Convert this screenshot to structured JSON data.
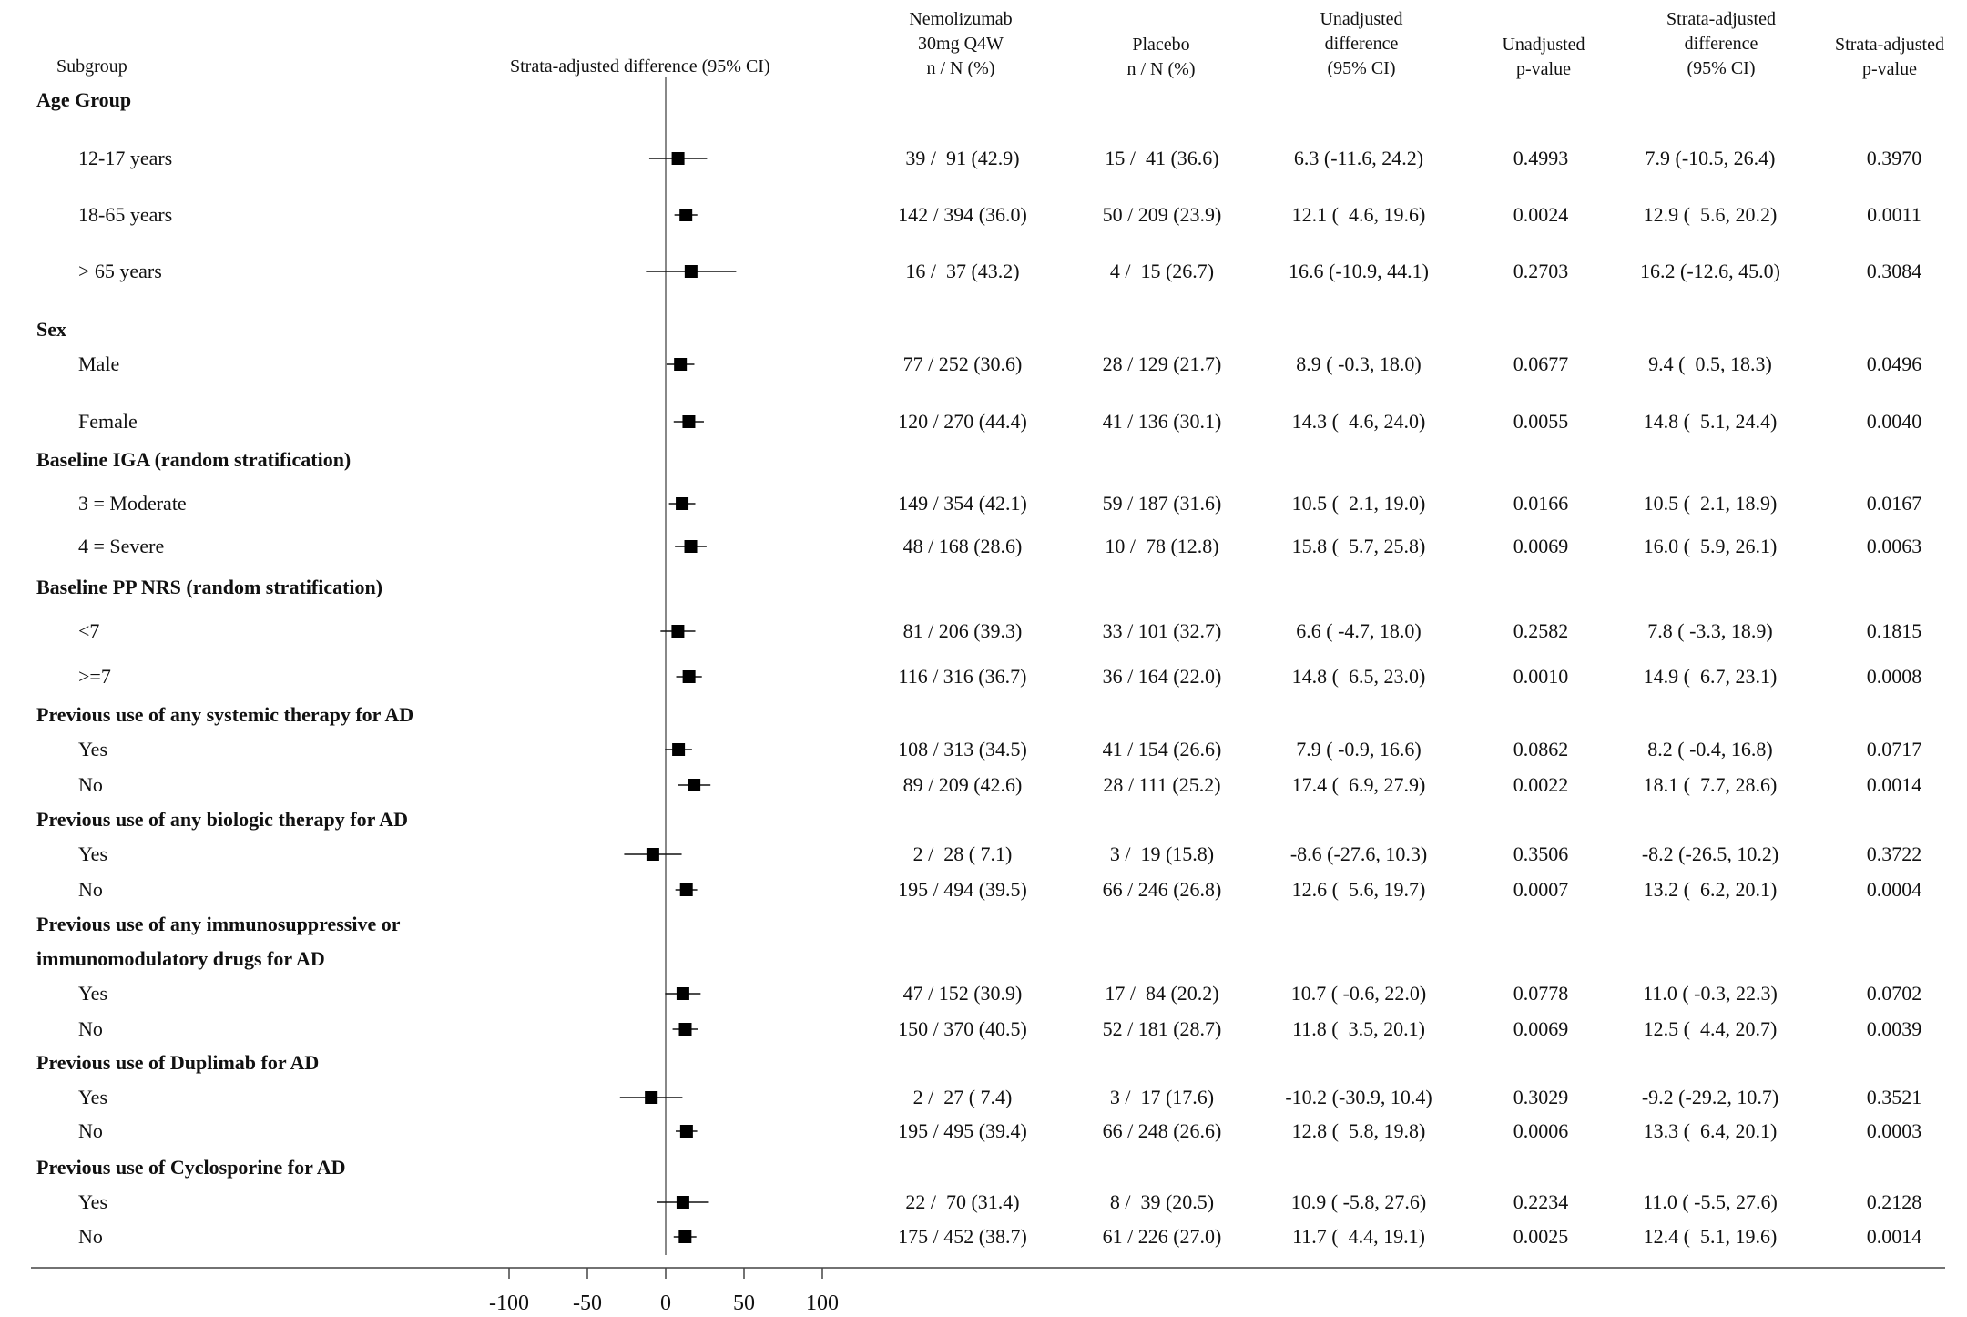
{
  "headers": {
    "subgroup": "Subgroup",
    "plot": "Strata-adjusted difference (95% CI)",
    "nemo": "Nemolizumab\n30mg Q4W\nn / N (%)",
    "placebo": "Placebo\nn / N (%)",
    "unadj_diff": "Unadjusted\ndifference\n(95% CI)",
    "unadj_p": "Unadjusted\np-value",
    "adj_diff": "Strata-adjusted\ndifference\n(95% CI)",
    "adj_p": "Strata-adjusted\np-value"
  },
  "chart_data": {
    "type": "forest",
    "xlim": [
      -100,
      100
    ],
    "ticks": [
      -100,
      -50,
      0,
      50,
      100
    ],
    "reference_line": 0,
    "rows": [
      {
        "label": "Age Group",
        "group": true
      },
      {
        "label": "12-17 years",
        "nemo": "39 /  91 (42.9)",
        "placebo": "15 /  41 (36.6)",
        "unadj_diff": "6.3 (-11.6, 24.2)",
        "unadj_p": "0.4993",
        "adj_diff": "7.9 (-10.5, 26.4)",
        "adj_p": "0.3970",
        "est": 7.9,
        "lo": -10.5,
        "hi": 26.4
      },
      {
        "label": "18-65 years",
        "nemo": "142 / 394 (36.0)",
        "placebo": "50 / 209 (23.9)",
        "unadj_diff": "12.1 (  4.6, 19.6)",
        "unadj_p": "0.0024",
        "adj_diff": "12.9 (  5.6, 20.2)",
        "adj_p": "0.0011",
        "est": 12.9,
        "lo": 5.6,
        "hi": 20.2
      },
      {
        "label": "> 65 years",
        "nemo": "16 /  37 (43.2)",
        "placebo": "4 /  15 (26.7)",
        "unadj_diff": "16.6 (-10.9, 44.1)",
        "unadj_p": "0.2703",
        "adj_diff": "16.2 (-12.6, 45.0)",
        "adj_p": "0.3084",
        "est": 16.2,
        "lo": -12.6,
        "hi": 45.0
      },
      {
        "label": "Sex",
        "group": true
      },
      {
        "label": "Male",
        "nemo": "77 / 252 (30.6)",
        "placebo": "28 / 129 (21.7)",
        "unadj_diff": "8.9 ( -0.3, 18.0)",
        "unadj_p": "0.0677",
        "adj_diff": "9.4 (  0.5, 18.3)",
        "adj_p": "0.0496",
        "est": 9.4,
        "lo": 0.5,
        "hi": 18.3
      },
      {
        "label": "Female",
        "nemo": "120 / 270 (44.4)",
        "placebo": "41 / 136 (30.1)",
        "unadj_diff": "14.3 (  4.6, 24.0)",
        "unadj_p": "0.0055",
        "adj_diff": "14.8 (  5.1, 24.4)",
        "adj_p": "0.0040",
        "est": 14.8,
        "lo": 5.1,
        "hi": 24.4
      },
      {
        "label": "Baseline IGA (random stratification)",
        "group": true
      },
      {
        "label": "3 = Moderate",
        "nemo": "149 / 354 (42.1)",
        "placebo": "59 / 187 (31.6)",
        "unadj_diff": "10.5 (  2.1, 19.0)",
        "unadj_p": "0.0166",
        "adj_diff": "10.5 (  2.1, 18.9)",
        "adj_p": "0.0167",
        "est": 10.5,
        "lo": 2.1,
        "hi": 18.9
      },
      {
        "label": "4 = Severe",
        "nemo": "48 / 168 (28.6)",
        "placebo": "10 /  78 (12.8)",
        "unadj_diff": "15.8 (  5.7, 25.8)",
        "unadj_p": "0.0069",
        "adj_diff": "16.0 (  5.9, 26.1)",
        "adj_p": "0.0063",
        "est": 16.0,
        "lo": 5.9,
        "hi": 26.1
      },
      {
        "label": "Baseline PP NRS (random stratification)",
        "group": true
      },
      {
        "label": "<7",
        "nemo": "81 / 206 (39.3)",
        "placebo": "33 / 101 (32.7)",
        "unadj_diff": "6.6 ( -4.7, 18.0)",
        "unadj_p": "0.2582",
        "adj_diff": "7.8 ( -3.3, 18.9)",
        "adj_p": "0.1815",
        "est": 7.8,
        "lo": -3.3,
        "hi": 18.9
      },
      {
        "label": ">=7",
        "nemo": "116 / 316 (36.7)",
        "placebo": "36 / 164 (22.0)",
        "unadj_diff": "14.8 (  6.5, 23.0)",
        "unadj_p": "0.0010",
        "adj_diff": "14.9 (  6.7, 23.1)",
        "adj_p": "0.0008",
        "est": 14.9,
        "lo": 6.7,
        "hi": 23.1
      },
      {
        "label": "Previous use of any systemic therapy for AD",
        "group": true
      },
      {
        "label": "Yes",
        "nemo": "108 / 313 (34.5)",
        "placebo": "41 / 154 (26.6)",
        "unadj_diff": "7.9 ( -0.9, 16.6)",
        "unadj_p": "0.0862",
        "adj_diff": "8.2 ( -0.4, 16.8)",
        "adj_p": "0.0717",
        "est": 8.2,
        "lo": -0.4,
        "hi": 16.8
      },
      {
        "label": "No",
        "nemo": "89 / 209 (42.6)",
        "placebo": "28 / 111 (25.2)",
        "unadj_diff": "17.4 (  6.9, 27.9)",
        "unadj_p": "0.0022",
        "adj_diff": "18.1 (  7.7, 28.6)",
        "adj_p": "0.0014",
        "est": 18.1,
        "lo": 7.7,
        "hi": 28.6
      },
      {
        "label": "Previous use of any biologic therapy for AD",
        "group": true
      },
      {
        "label": "Yes",
        "nemo": "2 /  28 ( 7.1)",
        "placebo": "3 /  19 (15.8)",
        "unadj_diff": "-8.6 (-27.6, 10.3)",
        "unadj_p": "0.3506",
        "adj_diff": "-8.2 (-26.5, 10.2)",
        "adj_p": "0.3722",
        "est": -8.2,
        "lo": -26.5,
        "hi": 10.2
      },
      {
        "label": "No",
        "nemo": "195 / 494 (39.5)",
        "placebo": "66 / 246 (26.8)",
        "unadj_diff": "12.6 (  5.6, 19.7)",
        "unadj_p": "0.0007",
        "adj_diff": "13.2 (  6.2, 20.1)",
        "adj_p": "0.0004",
        "est": 13.2,
        "lo": 6.2,
        "hi": 20.1
      },
      {
        "label": "Previous use of any immunosuppressive or",
        "group": true
      },
      {
        "label": "immunomodulatory drugs for AD",
        "group": true
      },
      {
        "label": "Yes",
        "nemo": "47 / 152 (30.9)",
        "placebo": "17 /  84 (20.2)",
        "unadj_diff": "10.7 ( -0.6, 22.0)",
        "unadj_p": "0.0778",
        "adj_diff": "11.0 ( -0.3, 22.3)",
        "adj_p": "0.0702",
        "est": 11.0,
        "lo": -0.3,
        "hi": 22.3
      },
      {
        "label": "No",
        "nemo": "150 / 370 (40.5)",
        "placebo": "52 / 181 (28.7)",
        "unadj_diff": "11.8 (  3.5, 20.1)",
        "unadj_p": "0.0069",
        "adj_diff": "12.5 (  4.4, 20.7)",
        "adj_p": "0.0039",
        "est": 12.5,
        "lo": 4.4,
        "hi": 20.7
      },
      {
        "label": "Previous use of Duplimab for AD",
        "group": true
      },
      {
        "label": "Yes",
        "nemo": "2 /  27 ( 7.4)",
        "placebo": "3 /  17 (17.6)",
        "unadj_diff": "-10.2 (-30.9, 10.4)",
        "unadj_p": "0.3029",
        "adj_diff": "-9.2 (-29.2, 10.7)",
        "adj_p": "0.3521",
        "est": -9.2,
        "lo": -29.2,
        "hi": 10.7
      },
      {
        "label": "No",
        "nemo": "195 / 495 (39.4)",
        "placebo": "66 / 248 (26.6)",
        "unadj_diff": "12.8 (  5.8, 19.8)",
        "unadj_p": "0.0006",
        "adj_diff": "13.3 (  6.4, 20.1)",
        "adj_p": "0.0003",
        "est": 13.3,
        "lo": 6.4,
        "hi": 20.1
      },
      {
        "label": "Previous use of Cyclosporine for AD",
        "group": true
      },
      {
        "label": "Yes",
        "nemo": "22 /  70 (31.4)",
        "placebo": "8 /  39 (20.5)",
        "unadj_diff": "10.9 ( -5.8, 27.6)",
        "unadj_p": "0.2234",
        "adj_diff": "11.0 ( -5.5, 27.6)",
        "adj_p": "0.2128",
        "est": 11.0,
        "lo": -5.5,
        "hi": 27.6
      },
      {
        "label": "No",
        "nemo": "175 / 452 (38.7)",
        "placebo": "61 / 226 (27.0)",
        "unadj_diff": "11.7 (  4.4, 19.1)",
        "unadj_p": "0.0025",
        "adj_diff": "12.4 (  5.1, 19.6)",
        "adj_p": "0.0014",
        "est": 12.4,
        "lo": 5.1,
        "hi": 19.6
      }
    ]
  }
}
